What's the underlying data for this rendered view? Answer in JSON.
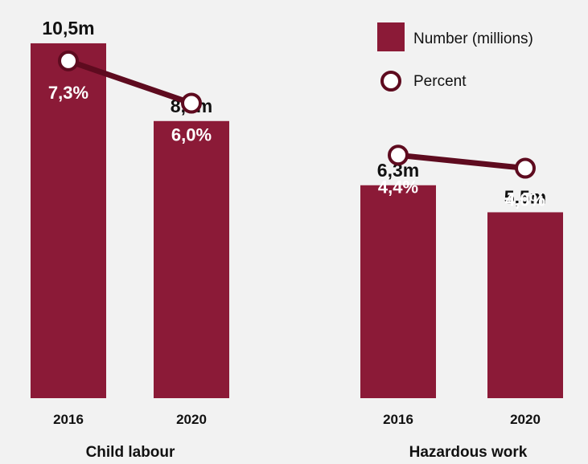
{
  "colors": {
    "bar": "#8b1a37",
    "line": "#5e0b1f",
    "marker_fill": "#ffffff",
    "marker_stroke": "#5e0b1f",
    "text_dark": "#111111",
    "text_light": "#ffffff",
    "background": "#f2f2f2"
  },
  "legend": {
    "bar_label": "Number (millions)",
    "marker_label": "Percent"
  },
  "chart_data": {
    "type": "bar",
    "legend_position": "top-right",
    "groups": [
      {
        "name": "Child labour",
        "categories": [
          "2016",
          "2020"
        ],
        "number_labels": [
          "10,5m",
          "8,2m"
        ],
        "number_values": [
          10.5,
          8.2
        ],
        "percent_labels": [
          "7,3%",
          "6,0%"
        ],
        "percent_values": [
          7.3,
          6.0
        ]
      },
      {
        "name": "Hazardous work",
        "categories": [
          "2016",
          "2020"
        ],
        "number_labels": [
          "6,3m",
          "5,5m"
        ],
        "number_values": [
          6.3,
          5.5
        ],
        "percent_labels": [
          "4,4%",
          "4,0%"
        ],
        "percent_values": [
          4.4,
          4.0
        ]
      }
    ]
  }
}
